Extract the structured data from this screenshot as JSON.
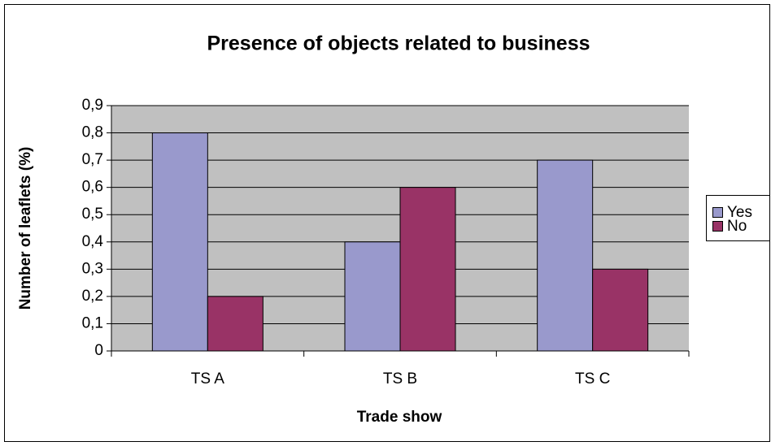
{
  "chart_data": {
    "type": "bar",
    "title": "Presence of objects related to business",
    "x_label": "Trade show",
    "y_label": "Number of leaflets (%)",
    "categories": [
      "TS A",
      "TS B",
      "TS C"
    ],
    "series": [
      {
        "name": "Yes",
        "color": "#9999cc",
        "values": [
          0.8,
          0.4,
          0.7
        ]
      },
      {
        "name": "No",
        "color": "#993366",
        "values": [
          0.2,
          0.6,
          0.3
        ]
      }
    ],
    "ylim": [
      0,
      0.9
    ],
    "yticks": [
      0,
      {
        "value": 0.1,
        "label": "0,1"
      },
      {
        "value": 0.2,
        "label": "0,2"
      },
      {
        "value": 0.3,
        "label": "0,3"
      },
      {
        "value": 0.4,
        "label": "0,4"
      },
      {
        "value": 0.5,
        "label": "0,5"
      },
      {
        "value": 0.6,
        "label": "0,6"
      },
      {
        "value": 0.7,
        "label": "0,7"
      },
      {
        "value": 0.8,
        "label": "0,8"
      },
      {
        "value": 0.9,
        "label": "0,9"
      }
    ],
    "grid": true,
    "legend": "right",
    "plot_background": "#c0c0c0"
  }
}
